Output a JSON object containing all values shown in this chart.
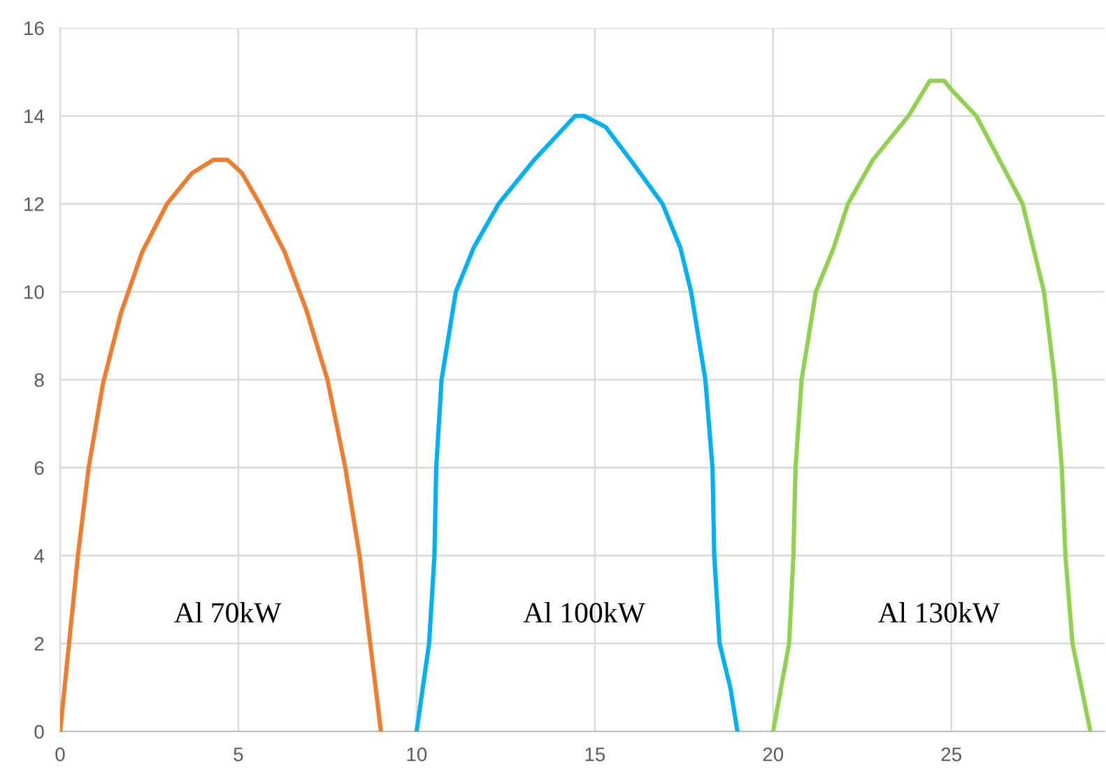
{
  "chart_data": {
    "type": "line",
    "xlim": [
      0,
      29.3
    ],
    "xticks": [
      0,
      5,
      10,
      15,
      20,
      25
    ],
    "ylim": [
      0,
      16
    ],
    "yticks": [
      0,
      2,
      4,
      6,
      8,
      10,
      12,
      14,
      16
    ],
    "grid": true,
    "marker": "none",
    "line_style": "solid",
    "series": [
      {
        "name": "Al 70kW",
        "color": "#ed7d31",
        "x": [
          0,
          0.25,
          0.5,
          0.8,
          1.2,
          1.7,
          2.3,
          3,
          3.7,
          4.3,
          4.7,
          5.1,
          5.6,
          6.3,
          6.9,
          7.5,
          8,
          8.4,
          8.7,
          9
        ],
        "values": [
          0,
          2,
          4,
          6,
          7.9,
          9.5,
          10.9,
          12,
          12.7,
          13,
          13,
          12.7,
          12,
          10.9,
          9.6,
          8,
          6,
          4,
          2,
          0
        ]
      },
      {
        "name": "Al 100kW",
        "color": "#00b0f0",
        "x": [
          10,
          10.35,
          10.5,
          10.55,
          10.7,
          11.1,
          11.6,
          12.3,
          13.3,
          14.45,
          14.7,
          15.3,
          16,
          16.9,
          17.4,
          17.7,
          18.1,
          18.3,
          18.35,
          18.5,
          18.8,
          19
        ],
        "values": [
          0,
          2,
          4,
          6,
          8,
          10,
          11,
          12,
          13,
          14,
          14,
          13.75,
          13,
          12,
          11,
          10,
          8,
          6,
          4,
          2,
          1,
          0
        ]
      },
      {
        "name": "Al 130kW",
        "color": "#92d050",
        "x": [
          20,
          20.45,
          20.57,
          20.63,
          20.8,
          21.2,
          21.7,
          22.1,
          22.8,
          23.8,
          24.4,
          24.8,
          25,
          25.7,
          26.35,
          27,
          27.3,
          27.6,
          27.9,
          28.1,
          28.2,
          28.4,
          28.9
        ],
        "values": [
          0,
          2,
          4,
          6,
          8,
          10,
          11,
          12,
          13,
          14,
          14.8,
          14.8,
          14.6,
          14,
          13,
          12,
          11,
          10,
          8,
          6,
          4,
          2,
          0
        ]
      }
    ]
  }
}
